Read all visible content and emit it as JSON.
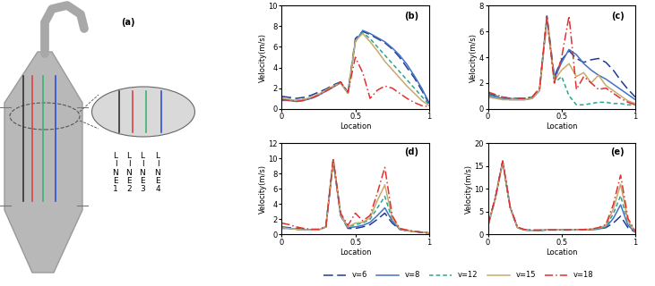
{
  "diagram": {
    "label": "(a)",
    "lines": [
      {
        "label": "LINE 1",
        "color": "#333333"
      },
      {
        "label": "LINE 2",
        "color": "#e04040"
      },
      {
        "label": "LINE 3",
        "color": "#3cb371"
      },
      {
        "label": "LINE 4",
        "color": "#3050d0"
      }
    ]
  },
  "chart_data": [
    {
      "type": "line",
      "title": "(b)",
      "xlabel": "Location",
      "ylabel": "Velocity(m/s)",
      "legend": "lower center",
      "x": [
        0,
        0.05,
        0.1,
        0.15,
        0.2,
        0.25,
        0.3,
        0.35,
        0.4,
        0.45,
        0.5,
        0.55,
        0.6,
        0.65,
        0.7,
        0.75,
        0.8,
        0.85,
        0.9,
        0.95,
        1
      ],
      "xlim": [
        0,
        1
      ],
      "xticks": [
        0,
        0.5,
        1
      ],
      "ylim": [
        0,
        10
      ],
      "yticks": [
        0,
        2,
        4,
        6,
        8,
        10
      ],
      "series": [
        {
          "name": "v=6",
          "color": "#1f3a93",
          "line_style": "long_dash",
          "values": [
            1.2,
            1.1,
            1.0,
            1.1,
            1.3,
            1.6,
            1.9,
            2.3,
            2.6,
            1.6,
            6.8,
            7.5,
            7.2,
            6.8,
            6.4,
            5.8,
            5.0,
            4.0,
            3.0,
            1.8,
            0.5
          ]
        },
        {
          "name": "v=8",
          "color": "#4472c4",
          "line_style": "solid",
          "values": [
            0.8,
            0.8,
            0.7,
            0.8,
            1.0,
            1.3,
            1.7,
            2.1,
            2.5,
            1.5,
            6.5,
            7.6,
            7.3,
            6.9,
            6.5,
            5.9,
            5.2,
            4.3,
            3.2,
            2.0,
            0.6
          ]
        },
        {
          "name": "v=12",
          "color": "#2ca58d",
          "line_style": "dashed",
          "values": [
            1.0,
            0.9,
            0.8,
            0.9,
            1.1,
            1.4,
            1.8,
            2.2,
            2.5,
            1.5,
            6.6,
            7.4,
            6.8,
            6.0,
            5.2,
            4.4,
            3.6,
            2.8,
            2.0,
            1.2,
            0.4
          ]
        },
        {
          "name": "v=15",
          "color": "#c8a96e",
          "line_style": "solid",
          "values": [
            1.0,
            0.9,
            0.8,
            0.9,
            1.1,
            1.4,
            1.8,
            2.2,
            2.5,
            1.5,
            6.6,
            7.3,
            6.5,
            5.6,
            4.6,
            3.8,
            3.0,
            2.2,
            1.5,
            0.8,
            0.3
          ]
        },
        {
          "name": "v=18",
          "color": "#e03030",
          "line_style": "dashdot",
          "values": [
            0.9,
            0.8,
            0.7,
            0.8,
            1.0,
            1.3,
            1.7,
            2.1,
            2.6,
            1.6,
            5.0,
            3.5,
            1.0,
            1.8,
            2.2,
            2.0,
            1.5,
            1.0,
            0.6,
            0.3,
            0.2
          ]
        }
      ]
    },
    {
      "type": "line",
      "title": "(c)",
      "xlabel": "Location",
      "ylabel": "Velocity(m/s)",
      "x": [
        0,
        0.05,
        0.1,
        0.15,
        0.2,
        0.25,
        0.3,
        0.35,
        0.4,
        0.45,
        0.5,
        0.55,
        0.6,
        0.65,
        0.7,
        0.75,
        0.8,
        0.85,
        0.9,
        0.95,
        1
      ],
      "xlim": [
        0,
        1
      ],
      "xticks": [
        0,
        0.5,
        1
      ],
      "ylim": [
        0,
        8
      ],
      "yticks": [
        0,
        2,
        4,
        6,
        8
      ],
      "series": [
        {
          "name": "v=6",
          "color": "#1f3a93",
          "line_style": "long_dash",
          "values": [
            1.2,
            1.0,
            0.9,
            0.8,
            0.8,
            0.8,
            0.9,
            1.5,
            7.2,
            2.5,
            3.8,
            4.5,
            3.9,
            3.6,
            3.8,
            3.9,
            3.6,
            3.0,
            2.2,
            1.5,
            0.9
          ]
        },
        {
          "name": "v=8",
          "color": "#4472c4",
          "line_style": "solid",
          "values": [
            1.0,
            0.9,
            0.8,
            0.7,
            0.7,
            0.7,
            0.8,
            1.4,
            7.0,
            2.3,
            3.6,
            4.6,
            4.2,
            3.5,
            3.0,
            2.6,
            2.3,
            1.9,
            1.5,
            1.1,
            0.7
          ]
        },
        {
          "name": "v=12",
          "color": "#2ca58d",
          "line_style": "dashed",
          "values": [
            1.1,
            1.0,
            0.9,
            0.8,
            0.8,
            0.8,
            0.9,
            1.5,
            7.1,
            2.0,
            2.5,
            1.0,
            0.3,
            0.3,
            0.4,
            0.5,
            0.5,
            0.4,
            0.4,
            0.3,
            0.3
          ]
        },
        {
          "name": "v=15",
          "color": "#c8a96e",
          "line_style": "solid",
          "values": [
            0.9,
            0.8,
            0.7,
            0.7,
            0.7,
            0.7,
            0.8,
            1.4,
            7.1,
            2.2,
            3.0,
            3.5,
            2.5,
            2.8,
            2.0,
            2.6,
            1.8,
            1.4,
            1.0,
            0.6,
            0.4
          ]
        },
        {
          "name": "v=18",
          "color": "#e03030",
          "line_style": "dashdot",
          "values": [
            1.3,
            1.1,
            0.9,
            0.8,
            0.8,
            0.8,
            0.9,
            1.6,
            7.2,
            2.0,
            4.0,
            7.2,
            1.5,
            2.5,
            2.0,
            1.5,
            1.6,
            1.2,
            0.8,
            0.5,
            0.3
          ]
        }
      ]
    },
    {
      "type": "line",
      "title": "(d)",
      "xlabel": "Location",
      "ylabel": "Velocity(m/s)",
      "x": [
        0,
        0.05,
        0.1,
        0.15,
        0.2,
        0.25,
        0.3,
        0.35,
        0.4,
        0.45,
        0.5,
        0.55,
        0.6,
        0.65,
        0.7,
        0.75,
        0.8,
        0.85,
        0.9,
        0.95,
        1
      ],
      "xlim": [
        0,
        1
      ],
      "xticks": [
        0,
        0.5,
        1
      ],
      "ylim": [
        0,
        12
      ],
      "yticks": [
        0,
        2,
        4,
        6,
        8,
        10,
        12
      ],
      "series": [
        {
          "name": "v=6",
          "color": "#1f3a93",
          "line_style": "long_dash",
          "values": [
            1.0,
            0.9,
            0.8,
            0.7,
            0.6,
            0.6,
            1.0,
            9.8,
            2.5,
            0.8,
            0.8,
            1.0,
            1.3,
            2.0,
            2.8,
            1.5,
            0.7,
            0.5,
            0.4,
            0.3,
            0.2
          ]
        },
        {
          "name": "v=8",
          "color": "#4472c4",
          "line_style": "solid",
          "values": [
            0.8,
            0.8,
            0.7,
            0.6,
            0.6,
            0.6,
            1.0,
            9.7,
            2.5,
            0.9,
            1.0,
            1.2,
            1.6,
            2.5,
            3.5,
            1.8,
            0.7,
            0.5,
            0.4,
            0.3,
            0.2
          ]
        },
        {
          "name": "v=12",
          "color": "#2ca58d",
          "line_style": "dashed",
          "values": [
            0.9,
            0.8,
            0.7,
            0.6,
            0.6,
            0.6,
            1.0,
            9.8,
            2.6,
            1.0,
            1.3,
            1.5,
            2.0,
            3.5,
            5.0,
            2.0,
            0.7,
            0.5,
            0.4,
            0.3,
            0.2
          ]
        },
        {
          "name": "v=15",
          "color": "#c8a96e",
          "line_style": "solid",
          "values": [
            0.9,
            0.8,
            0.7,
            0.6,
            0.6,
            0.6,
            1.0,
            9.8,
            2.6,
            1.0,
            1.5,
            1.6,
            2.2,
            4.5,
            6.5,
            2.2,
            0.8,
            0.5,
            0.4,
            0.3,
            0.2
          ]
        },
        {
          "name": "v=18",
          "color": "#e03030",
          "line_style": "dashdot",
          "values": [
            1.5,
            1.3,
            1.0,
            0.8,
            0.7,
            0.7,
            1.0,
            9.9,
            2.8,
            1.2,
            2.8,
            1.8,
            2.5,
            5.5,
            8.8,
            2.5,
            0.8,
            0.6,
            0.4,
            0.3,
            0.2
          ]
        }
      ]
    },
    {
      "type": "line",
      "title": "(e)",
      "xlabel": "Location",
      "ylabel": "Velocity(m/s)",
      "x": [
        0,
        0.05,
        0.1,
        0.15,
        0.2,
        0.25,
        0.3,
        0.35,
        0.4,
        0.45,
        0.5,
        0.55,
        0.6,
        0.65,
        0.7,
        0.75,
        0.8,
        0.85,
        0.9,
        0.95,
        1
      ],
      "xlim": [
        0,
        1
      ],
      "xticks": [
        0,
        0.5,
        1
      ],
      "ylim": [
        0,
        20
      ],
      "yticks": [
        0,
        5,
        10,
        15,
        20
      ],
      "series": [
        {
          "name": "v=6",
          "color": "#1f3a93",
          "line_style": "long_dash",
          "values": [
            2.0,
            8.0,
            16.0,
            6.0,
            1.5,
            1.0,
            0.9,
            0.9,
            1.0,
            1.0,
            1.0,
            1.0,
            1.0,
            1.0,
            1.1,
            1.2,
            1.5,
            2.5,
            4.0,
            1.5,
            0.5
          ]
        },
        {
          "name": "v=8",
          "color": "#4472c4",
          "line_style": "solid",
          "values": [
            2.0,
            8.0,
            16.0,
            6.0,
            1.5,
            1.0,
            0.9,
            0.9,
            1.0,
            1.0,
            1.0,
            1.0,
            1.0,
            1.0,
            1.1,
            1.2,
            1.6,
            3.5,
            6.5,
            2.0,
            0.5
          ]
        },
        {
          "name": "v=12",
          "color": "#2ca58d",
          "line_style": "dashed",
          "values": [
            1.8,
            7.8,
            15.9,
            5.9,
            1.4,
            1.0,
            0.9,
            0.9,
            1.0,
            1.0,
            1.0,
            1.0,
            1.0,
            1.1,
            1.1,
            1.3,
            1.8,
            4.5,
            8.5,
            2.5,
            0.6
          ]
        },
        {
          "name": "v=15",
          "color": "#c8a96e",
          "line_style": "solid",
          "values": [
            1.9,
            7.9,
            16.0,
            6.0,
            1.5,
            1.0,
            0.9,
            0.9,
            1.0,
            1.0,
            1.0,
            1.0,
            1.0,
            1.1,
            1.2,
            1.4,
            2.0,
            5.5,
            11.0,
            3.0,
            0.6
          ]
        },
        {
          "name": "v=18",
          "color": "#e03030",
          "line_style": "dashdot",
          "values": [
            2.1,
            8.1,
            16.1,
            6.1,
            1.6,
            1.1,
            1.0,
            1.0,
            1.0,
            1.0,
            1.0,
            1.0,
            1.1,
            1.1,
            1.2,
            1.5,
            2.2,
            6.5,
            13.0,
            3.5,
            0.7
          ]
        }
      ]
    }
  ]
}
